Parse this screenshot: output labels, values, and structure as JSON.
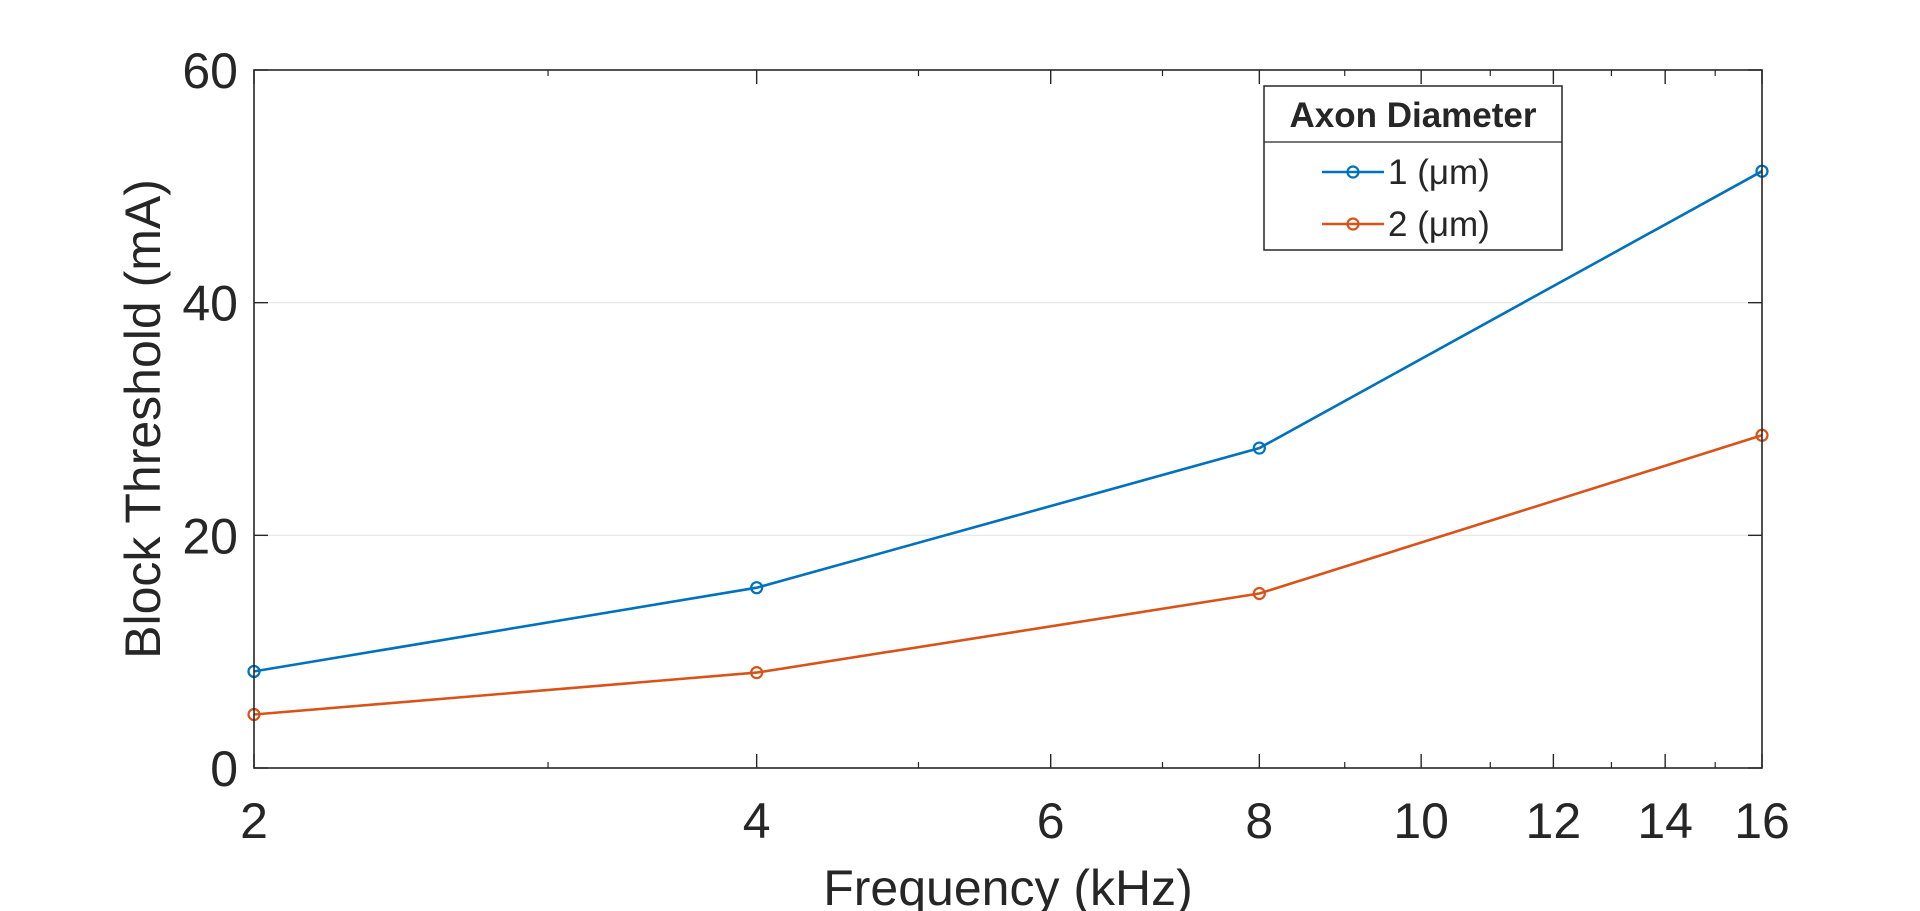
{
  "chart_data": {
    "type": "line",
    "title": "",
    "xlabel": "Frequency (kHz)",
    "ylabel": "Block Threshold (mA)",
    "x_scale": "log",
    "xlim": [
      2,
      16
    ],
    "ylim": [
      0,
      60
    ],
    "x": [
      2,
      4,
      8,
      16
    ],
    "xticks": [
      2,
      4,
      6,
      8,
      10,
      12,
      14,
      16
    ],
    "xtick_labels": [
      "2",
      "4",
      "6",
      "8",
      "10",
      "12",
      "14",
      "16"
    ],
    "yticks": [
      0,
      20,
      40,
      60
    ],
    "ytick_labels": [
      "0",
      "20",
      "40",
      "60"
    ],
    "grid": "horizontal",
    "legend": {
      "title": "Axon Diameter",
      "placement": "top-right"
    },
    "series": [
      {
        "name": "1 (μm)",
        "values": [
          8.3,
          15.5,
          27.5,
          51.3
        ],
        "color": "#0072BD",
        "marker": "circle"
      },
      {
        "name": "2 (μm)",
        "values": [
          4.6,
          8.2,
          15.0,
          28.6
        ],
        "color": "#D95319",
        "marker": "circle"
      }
    ]
  }
}
